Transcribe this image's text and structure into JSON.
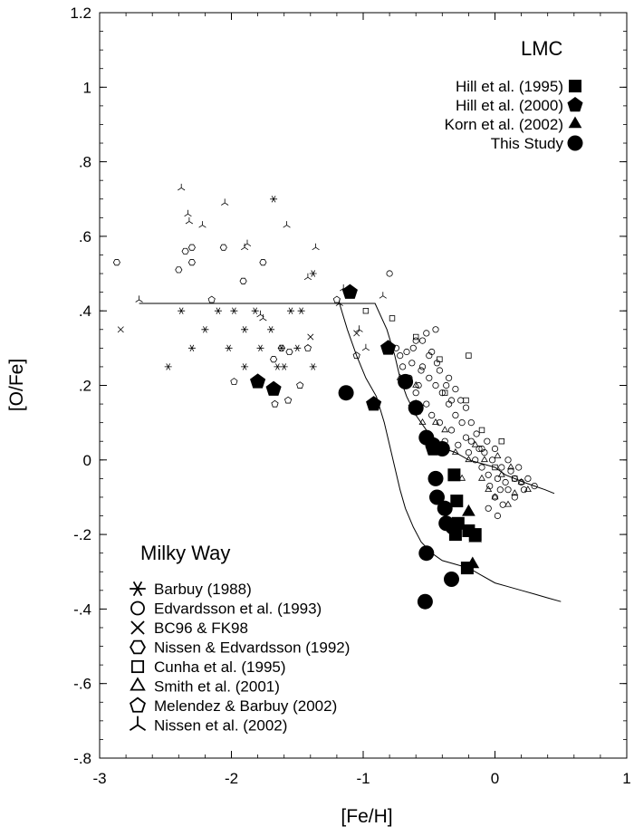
{
  "chart_data": {
    "type": "scatter",
    "xlabel": "[Fe/H]",
    "ylabel": "[O/Fe]",
    "xlim": [
      -3,
      1
    ],
    "ylim": [
      -0.8,
      1.2
    ],
    "x_ticks": [
      {
        "v": -3,
        "label": "-3"
      },
      {
        "v": -2,
        "label": "-2"
      },
      {
        "v": -1,
        "label": "-1"
      },
      {
        "v": 0,
        "label": "0"
      },
      {
        "v": 1,
        "label": "1"
      }
    ],
    "y_ticks": [
      {
        "v": 1.2,
        "label": "1.2"
      },
      {
        "v": 1.0,
        "label": "1"
      },
      {
        "v": 0.8,
        "label": ".8"
      },
      {
        "v": 0.6,
        "label": ".6"
      },
      {
        "v": 0.4,
        "label": ".4"
      },
      {
        "v": 0.2,
        "label": ".2"
      },
      {
        "v": 0.0,
        "label": "0"
      },
      {
        "v": -0.2,
        "label": "-.2"
      },
      {
        "v": -0.4,
        "label": "-.4"
      },
      {
        "v": -0.6,
        "label": "-.6"
      },
      {
        "v": -0.8,
        "label": "-.8"
      }
    ],
    "grid": false,
    "legend_lmc": {
      "title": "LMC",
      "position": "top-right",
      "entries": [
        {
          "label": "Hill et al. (1995)",
          "marker": "filled-square"
        },
        {
          "label": "Hill et al. (2000)",
          "marker": "filled-pentagon"
        },
        {
          "label": "Korn et al. (2002)",
          "marker": "filled-triangle"
        },
        {
          "label": "This Study",
          "marker": "filled-circle"
        }
      ]
    },
    "legend_mw": {
      "title": "Milky Way",
      "position": "bottom-left",
      "entries": [
        {
          "label": "Barbuy (1988)",
          "marker": "asterisk"
        },
        {
          "label": "Edvardsson et al. (1993)",
          "marker": "open-circle"
        },
        {
          "label": "BC96 & FK98",
          "marker": "cross"
        },
        {
          "label": "Nissen & Edvardsson (1992)",
          "marker": "open-hexagon"
        },
        {
          "label": "Cunha et al. (1995)",
          "marker": "open-square"
        },
        {
          "label": "Smith et al. (2001)",
          "marker": "open-triangle"
        },
        {
          "label": "Melendez & Barbuy (2002)",
          "marker": "open-pentagon"
        },
        {
          "label": "Nissen et al. (2002)",
          "marker": "tri-star"
        }
      ]
    },
    "series": [
      {
        "name": "This Study",
        "marker": "filled-circle",
        "points": [
          [
            -1.13,
            0.18
          ],
          [
            -0.68,
            0.21
          ],
          [
            -0.6,
            0.14
          ],
          [
            -0.52,
            0.06
          ],
          [
            -0.47,
            0.04
          ],
          [
            -0.4,
            0.03
          ],
          [
            -0.45,
            -0.05
          ],
          [
            -0.44,
            -0.1
          ],
          [
            -0.38,
            -0.13
          ],
          [
            -0.37,
            -0.17
          ],
          [
            -0.32,
            -0.18
          ],
          [
            -0.52,
            -0.25
          ],
          [
            -0.33,
            -0.32
          ],
          [
            -0.53,
            -0.38
          ]
        ]
      },
      {
        "name": "Hill et al. (1995)",
        "marker": "filled-square",
        "points": [
          [
            -0.31,
            -0.04
          ],
          [
            -0.29,
            -0.11
          ],
          [
            -0.3,
            -0.2
          ],
          [
            -0.28,
            -0.17
          ],
          [
            -0.2,
            -0.19
          ],
          [
            -0.15,
            -0.2
          ],
          [
            -0.21,
            -0.29
          ]
        ]
      },
      {
        "name": "Hill et al. (2000)",
        "marker": "filled-pentagon",
        "points": [
          [
            -1.1,
            0.45
          ],
          [
            -1.8,
            0.21
          ],
          [
            -1.68,
            0.19
          ],
          [
            -0.92,
            0.15
          ],
          [
            -0.81,
            0.3
          ],
          [
            -0.6,
            0.14
          ],
          [
            -0.47,
            0.03
          ]
        ]
      },
      {
        "name": "Korn et al. (2002)",
        "marker": "filled-triangle",
        "points": [
          [
            -0.2,
            -0.14
          ],
          [
            -0.15,
            -0.21
          ],
          [
            -0.17,
            -0.28
          ]
        ]
      },
      {
        "name": "Barbuy (1988)",
        "marker": "asterisk",
        "points": [
          [
            -2.48,
            0.25
          ],
          [
            -2.38,
            0.4
          ],
          [
            -2.3,
            0.3
          ],
          [
            -2.2,
            0.35
          ],
          [
            -2.1,
            0.4
          ],
          [
            -2.02,
            0.3
          ],
          [
            -1.98,
            0.4
          ],
          [
            -1.9,
            0.35
          ],
          [
            -1.9,
            0.25
          ],
          [
            -1.82,
            0.4
          ],
          [
            -1.78,
            0.3
          ],
          [
            -1.7,
            0.35
          ],
          [
            -1.65,
            0.25
          ],
          [
            -1.62,
            0.3
          ],
          [
            -1.6,
            0.25
          ],
          [
            -1.55,
            0.4
          ],
          [
            -1.5,
            0.3
          ],
          [
            -1.47,
            0.4
          ],
          [
            -1.38,
            0.5
          ],
          [
            -1.38,
            0.25
          ],
          [
            -1.68,
            0.7
          ]
        ]
      },
      {
        "name": "Edvardsson et al. (1993)",
        "marker": "open-circle",
        "points": [
          [
            -0.8,
            0.5
          ],
          [
            -0.75,
            0.3
          ],
          [
            -0.72,
            0.28
          ],
          [
            -0.7,
            0.25
          ],
          [
            -0.65,
            0.22
          ],
          [
            -0.62,
            0.3
          ],
          [
            -0.6,
            0.18
          ],
          [
            -0.58,
            0.2
          ],
          [
            -0.55,
            0.25
          ],
          [
            -0.52,
            0.15
          ],
          [
            -0.5,
            0.28
          ],
          [
            -0.48,
            0.12
          ],
          [
            -0.45,
            0.2
          ],
          [
            -0.42,
            0.1
          ],
          [
            -0.4,
            0.18
          ],
          [
            -0.38,
            0.05
          ],
          [
            -0.35,
            0.15
          ],
          [
            -0.33,
            0.08
          ],
          [
            -0.3,
            0.12
          ],
          [
            -0.28,
            0.04
          ],
          [
            -0.25,
            0.1
          ],
          [
            -0.22,
            0.06
          ],
          [
            -0.2,
            0.02
          ],
          [
            -0.18,
            0.05
          ],
          [
            -0.15,
            0.0
          ],
          [
            -0.12,
            0.03
          ],
          [
            -0.1,
            -0.02
          ],
          [
            -0.08,
            0.02
          ],
          [
            -0.05,
            -0.04
          ],
          [
            -0.02,
            0.0
          ],
          [
            0.0,
            0.03
          ],
          [
            0.02,
            -0.05
          ],
          [
            0.05,
            -0.02
          ],
          [
            0.08,
            -0.06
          ],
          [
            0.1,
            0.0
          ],
          [
            0.12,
            -0.03
          ],
          [
            0.15,
            -0.05
          ],
          [
            0.18,
            -0.02
          ],
          [
            0.2,
            -0.06
          ],
          [
            0.25,
            -0.05
          ],
          [
            0.3,
            -0.07
          ],
          [
            -0.45,
            0.35
          ],
          [
            -0.55,
            0.32
          ],
          [
            -0.48,
            0.29
          ],
          [
            -0.5,
            0.22
          ],
          [
            -0.42,
            0.24
          ],
          [
            -0.35,
            0.22
          ],
          [
            -0.3,
            0.19
          ],
          [
            -0.26,
            0.16
          ],
          [
            -0.22,
            0.14
          ],
          [
            -0.18,
            0.1
          ],
          [
            -0.14,
            0.07
          ],
          [
            -0.1,
            0.03
          ],
          [
            -0.06,
            0.05
          ],
          [
            -0.04,
            -0.07
          ],
          [
            0.0,
            -0.1
          ],
          [
            0.04,
            -0.08
          ],
          [
            0.06,
            -0.12
          ],
          [
            0.1,
            -0.08
          ],
          [
            0.15,
            -0.1
          ],
          [
            0.22,
            -0.08
          ],
          [
            -0.05,
            -0.13
          ],
          [
            0.02,
            -0.15
          ],
          [
            -0.63,
            0.26
          ],
          [
            -0.67,
            0.29
          ],
          [
            -0.6,
            0.32
          ],
          [
            -0.56,
            0.24
          ],
          [
            -0.52,
            0.34
          ],
          [
            -0.44,
            0.26
          ],
          [
            -0.37,
            0.2
          ],
          [
            -0.33,
            0.16
          ]
        ]
      },
      {
        "name": "BC96 & FK98",
        "marker": "cross",
        "points": [
          [
            -2.84,
            0.35
          ],
          [
            -1.4,
            0.33
          ],
          [
            -1.05,
            0.34
          ]
        ]
      },
      {
        "name": "Nissen & Edvardsson (1992)",
        "marker": "open-hexagon",
        "points": [
          [
            -2.87,
            0.53
          ],
          [
            -2.35,
            0.56
          ],
          [
            -2.3,
            0.57
          ],
          [
            -2.4,
            0.51
          ],
          [
            -2.3,
            0.53
          ],
          [
            -2.06,
            0.57
          ],
          [
            -1.91,
            0.48
          ],
          [
            -1.76,
            0.53
          ],
          [
            -1.62,
            0.3
          ],
          [
            -1.56,
            0.29
          ],
          [
            -1.68,
            0.27
          ]
        ]
      },
      {
        "name": "Cunha et al. (1995)",
        "marker": "open-square",
        "points": [
          [
            -0.98,
            0.4
          ],
          [
            -0.78,
            0.38
          ],
          [
            -0.6,
            0.33
          ],
          [
            -0.42,
            0.27
          ],
          [
            -0.38,
            0.18
          ],
          [
            -0.22,
            0.16
          ],
          [
            -0.2,
            0.28
          ],
          [
            -0.1,
            0.08
          ],
          [
            0.0,
            -0.02
          ],
          [
            0.05,
            0.05
          ],
          [
            0.15,
            -0.05
          ]
        ]
      },
      {
        "name": "Smith et al. (2001)",
        "marker": "open-triangle",
        "points": [
          [
            -0.72,
            0.22
          ],
          [
            -0.6,
            0.2
          ],
          [
            -0.55,
            0.1
          ],
          [
            -0.5,
            0.05
          ],
          [
            -0.45,
            0.1
          ],
          [
            -0.38,
            0.08
          ],
          [
            -0.3,
            0.02
          ],
          [
            -0.25,
            -0.05
          ],
          [
            -0.2,
            0.0
          ],
          [
            -0.15,
            0.04
          ],
          [
            -0.1,
            -0.05
          ],
          [
            -0.05,
            -0.08
          ],
          [
            0.0,
            -0.1
          ],
          [
            0.05,
            -0.04
          ],
          [
            0.1,
            -0.12
          ],
          [
            0.15,
            -0.09
          ],
          [
            -0.08,
            0.0
          ],
          [
            0.02,
            0.01
          ],
          [
            0.12,
            -0.02
          ],
          [
            0.2,
            -0.06
          ],
          [
            0.25,
            -0.08
          ]
        ]
      },
      {
        "name": "Melendez & Barbuy (2002)",
        "marker": "open-pentagon",
        "points": [
          [
            -2.15,
            0.43
          ],
          [
            -1.98,
            0.21
          ],
          [
            -1.67,
            0.15
          ],
          [
            -1.57,
            0.16
          ],
          [
            -1.48,
            0.2
          ],
          [
            -1.42,
            0.3
          ],
          [
            -1.2,
            0.43
          ],
          [
            -1.05,
            0.28
          ]
        ]
      },
      {
        "name": "Nissen et al. (2002)",
        "marker": "tri-star",
        "points": [
          [
            -2.7,
            0.43
          ],
          [
            -2.38,
            0.73
          ],
          [
            -2.33,
            0.66
          ],
          [
            -2.32,
            0.64
          ],
          [
            -2.22,
            0.63
          ],
          [
            -2.05,
            0.69
          ],
          [
            -1.9,
            0.57
          ],
          [
            -1.88,
            0.58
          ],
          [
            -1.78,
            0.39
          ],
          [
            -1.76,
            0.38
          ],
          [
            -1.58,
            0.63
          ],
          [
            -1.36,
            0.57
          ],
          [
            -1.42,
            0.49
          ],
          [
            -1.18,
            0.42
          ],
          [
            -1.15,
            0.46
          ],
          [
            -1.03,
            0.35
          ],
          [
            -0.98,
            0.3
          ],
          [
            -0.85,
            0.44
          ]
        ]
      }
    ],
    "lines": [
      {
        "style": "solid",
        "points": [
          [
            -2.7,
            0.42
          ],
          [
            -0.91,
            0.42
          ],
          [
            -0.82,
            0.35
          ],
          [
            -0.76,
            0.28
          ],
          [
            -0.72,
            0.22
          ],
          [
            -0.67,
            0.17
          ],
          [
            -0.6,
            0.12
          ],
          [
            -0.52,
            0.08
          ],
          [
            -0.45,
            0.05
          ],
          [
            -0.38,
            0.03
          ],
          [
            -0.3,
            0.02
          ],
          [
            -0.2,
            0.0
          ],
          [
            -0.1,
            -0.01
          ],
          [
            0.0,
            -0.02
          ],
          [
            0.08,
            -0.04
          ],
          [
            0.15,
            -0.05
          ],
          [
            0.22,
            -0.06
          ],
          [
            0.3,
            -0.07
          ],
          [
            0.38,
            -0.08
          ],
          [
            0.45,
            -0.09
          ]
        ]
      },
      {
        "style": "solid",
        "points": [
          [
            -1.18,
            0.42
          ],
          [
            -1.12,
            0.35
          ],
          [
            -1.05,
            0.28
          ],
          [
            -0.98,
            0.22
          ],
          [
            -0.9,
            0.17
          ],
          [
            -0.84,
            0.1
          ],
          [
            -0.8,
            0.04
          ],
          [
            -0.76,
            -0.02
          ],
          [
            -0.72,
            -0.08
          ],
          [
            -0.68,
            -0.13
          ],
          [
            -0.62,
            -0.18
          ],
          [
            -0.56,
            -0.22
          ],
          [
            -0.48,
            -0.25
          ],
          [
            -0.4,
            -0.27
          ],
          [
            -0.3,
            -0.28
          ],
          [
            -0.2,
            -0.29
          ],
          [
            -0.1,
            -0.31
          ],
          [
            0.0,
            -0.33
          ],
          [
            0.1,
            -0.34
          ],
          [
            0.2,
            -0.35
          ],
          [
            0.3,
            -0.36
          ],
          [
            0.4,
            -0.37
          ],
          [
            0.5,
            -0.38
          ]
        ]
      }
    ]
  }
}
